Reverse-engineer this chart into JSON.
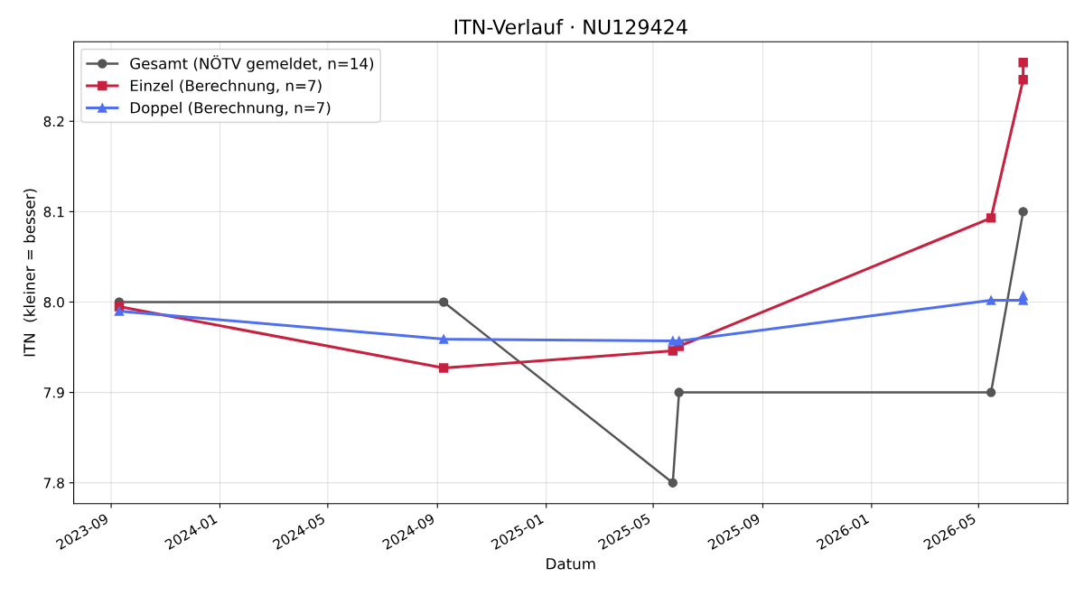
{
  "chart_data": {
    "type": "line",
    "title": "ITN-Verlauf · NU129424",
    "xlabel": "Datum",
    "ylabel": "ITN  (kleiner = besser)",
    "series": [
      {
        "name": "Gesamt (NÖTV gemeldet, n=14)",
        "color": "#555555",
        "marker": "circle",
        "x": [
          "2023-09-10",
          "2024-09-08",
          "2025-05-23",
          "2025-05-30",
          "2026-05-15",
          "2026-06-20"
        ],
        "values": [
          8.0,
          8.0,
          7.8,
          7.9,
          7.9,
          8.1
        ]
      },
      {
        "name": "Einzel (Berechnung, n=7)",
        "color": "#c8203f",
        "marker": "square",
        "x": [
          "2023-09-10",
          "2024-09-08",
          "2025-05-23",
          "2025-05-30",
          "2026-05-15",
          "2026-06-20",
          "2026-06-20"
        ],
        "values": [
          7.995,
          7.927,
          7.946,
          7.951,
          8.093,
          8.246,
          8.265
        ]
      },
      {
        "name": "Doppel (Berechnung, n=7)",
        "color": "#4f6ff0",
        "marker": "triangle",
        "x": [
          "2023-09-10",
          "2024-09-08",
          "2025-05-23",
          "2025-05-30",
          "2026-05-15",
          "2026-06-20",
          "2026-06-20"
        ],
        "values": [
          7.99,
          7.959,
          7.957,
          7.957,
          8.002,
          8.002,
          8.007
        ]
      }
    ],
    "xlim": [
      "2023-07-21",
      "2026-08-09"
    ],
    "xticks": [
      {
        "value": "2023-09-01",
        "label": "2023-09"
      },
      {
        "value": "2024-01-01",
        "label": "2024-01"
      },
      {
        "value": "2024-05-01",
        "label": "2024-05"
      },
      {
        "value": "2024-09-01",
        "label": "2024-09"
      },
      {
        "value": "2025-01-01",
        "label": "2025-01"
      },
      {
        "value": "2025-05-01",
        "label": "2025-05"
      },
      {
        "value": "2025-09-01",
        "label": "2025-09"
      },
      {
        "value": "2026-01-01",
        "label": "2026-01"
      },
      {
        "value": "2026-05-01",
        "label": "2026-05"
      }
    ],
    "ylim": [
      7.777,
      8.288
    ],
    "yticks": [
      7.8,
      7.9,
      {
        "value": 8,
        "label": "8.0"
      },
      8.1,
      8.2
    ],
    "grid": true,
    "legend": "top left",
    "line_style": "solid"
  }
}
